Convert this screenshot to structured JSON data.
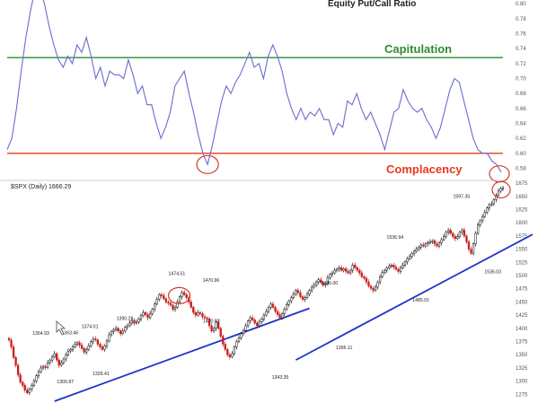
{
  "chart_data": [
    {
      "type": "line",
      "title": "Equity Put/Call Ratio",
      "y_ticks": [
        "0.80",
        "0.78",
        "0.76",
        "0.74",
        "0.72",
        "0.70",
        "0.68",
        "0.66",
        "0.64",
        "0.62",
        "0.60",
        "0.58"
      ],
      "ylim": [
        0.565,
        0.805
      ],
      "series": [
        {
          "values": [
            0.605,
            0.62,
            0.66,
            0.71,
            0.755,
            0.79,
            0.82,
            0.82,
            0.8,
            0.77,
            0.745,
            0.725,
            0.715,
            0.73,
            0.72,
            0.745,
            0.735,
            0.755,
            0.73,
            0.7,
            0.715,
            0.69,
            0.71,
            0.705,
            0.705,
            0.7,
            0.725,
            0.705,
            0.68,
            0.69,
            0.665,
            0.665,
            0.64,
            0.62,
            0.635,
            0.655,
            0.69,
            0.7,
            0.71,
            0.68,
            0.655,
            0.625,
            0.6,
            0.585,
            0.61,
            0.64,
            0.67,
            0.69,
            0.68,
            0.695,
            0.705,
            0.72,
            0.735,
            0.715,
            0.72,
            0.7,
            0.73,
            0.745,
            0.73,
            0.71,
            0.68,
            0.66,
            0.645,
            0.66,
            0.645,
            0.655,
            0.65,
            0.66,
            0.645,
            0.645,
            0.625,
            0.64,
            0.635,
            0.67,
            0.665,
            0.68,
            0.66,
            0.645,
            0.655,
            0.64,
            0.625,
            0.605,
            0.63,
            0.655,
            0.66,
            0.685,
            0.67,
            0.66,
            0.655,
            0.66,
            0.645,
            0.635,
            0.62,
            0.635,
            0.66,
            0.685,
            0.7,
            0.695,
            0.67,
            0.645,
            0.62,
            0.605,
            0.6,
            0.6,
            0.59,
            0.585,
            0.575
          ]
        }
      ],
      "reference_lines": [
        {
          "label": "Capitulation",
          "value": 0.728,
          "color": "#2e8b2e"
        },
        {
          "label": "Complacency",
          "value": 0.6,
          "color": "#e8391e"
        }
      ],
      "line_color": "#6b6bd0",
      "highlight_color": "#d63a2a"
    },
    {
      "type": "candlestick",
      "title": "$SPX (Daily) 1666.29",
      "y_ticks": [
        "1675",
        "1650",
        "1625",
        "1600",
        "1575",
        "1550",
        "1525",
        "1500",
        "1475",
        "1450",
        "1425",
        "1400",
        "1375",
        "1350",
        "1325",
        "1300",
        "1275"
      ],
      "ylim": [
        1262,
        1682
      ],
      "close": [
        1378,
        1365,
        1345,
        1330,
        1312,
        1298,
        1292,
        1283,
        1278,
        1285,
        1292,
        1300,
        1310,
        1318,
        1325,
        1328,
        1326,
        1335,
        1340,
        1346,
        1352,
        1340,
        1330,
        1335,
        1342,
        1350,
        1357,
        1360,
        1365,
        1370,
        1373,
        1368,
        1362,
        1355,
        1360,
        1367,
        1375,
        1380,
        1378,
        1370,
        1365,
        1360,
        1367,
        1376,
        1388,
        1394,
        1397,
        1400,
        1395,
        1390,
        1395,
        1402,
        1405,
        1410,
        1415,
        1410,
        1412,
        1418,
        1424,
        1430,
        1426,
        1420,
        1428,
        1436,
        1446,
        1455,
        1464,
        1462,
        1456,
        1450,
        1448,
        1444,
        1436,
        1440,
        1450,
        1460,
        1468,
        1464,
        1458,
        1450,
        1440,
        1430,
        1425,
        1430,
        1428,
        1422,
        1420,
        1418,
        1405,
        1395,
        1400,
        1412,
        1400,
        1385,
        1370,
        1360,
        1350,
        1346,
        1352,
        1365,
        1375,
        1382,
        1390,
        1396,
        1405,
        1414,
        1420,
        1416,
        1410,
        1405,
        1412,
        1418,
        1425,
        1432,
        1440,
        1446,
        1440,
        1432,
        1426,
        1420,
        1428,
        1436,
        1445,
        1452,
        1458,
        1465,
        1472,
        1468,
        1460,
        1455,
        1458,
        1465,
        1472,
        1478,
        1482,
        1488,
        1492,
        1487,
        1482,
        1484,
        1496,
        1502,
        1505,
        1510,
        1512,
        1515,
        1510,
        1513,
        1508,
        1505,
        1510,
        1520,
        1515,
        1510,
        1505,
        1498,
        1495,
        1488,
        1480,
        1476,
        1472,
        1478,
        1488,
        1498,
        1506,
        1510,
        1514,
        1518,
        1520,
        1516,
        1512,
        1508,
        1515,
        1520,
        1526,
        1532,
        1536,
        1542,
        1546,
        1550,
        1554,
        1558,
        1556,
        1560,
        1562,
        1564,
        1566,
        1560,
        1556,
        1562,
        1568,
        1574,
        1582,
        1586,
        1580,
        1574,
        1570,
        1574,
        1582,
        1586,
        1575,
        1564,
        1550,
        1542,
        1560,
        1580,
        1596,
        1604,
        1612,
        1620,
        1628,
        1634,
        1636,
        1644,
        1652,
        1660,
        1665,
        1666
      ],
      "annotations": [
        {
          "text": "1354.93",
          "i": 19,
          "price": 1350,
          "dy": -22,
          "dx": -12
        },
        {
          "text": "1363.46",
          "i": 27,
          "price": 1358,
          "dy": -18,
          "dx": 0
        },
        {
          "text": "1374.01",
          "i": 35,
          "price": 1367,
          "dy": -20,
          "dx": 2
        },
        {
          "text": "1390.29",
          "i": 48,
          "price": 1392,
          "dy": -14,
          "dx": 8
        },
        {
          "text": "1291.98",
          "i": 8,
          "price": 1278,
          "dy": 20,
          "dx": -8
        },
        {
          "text": "1266.74",
          "i": 14,
          "price": 1266,
          "dy": 12,
          "dx": 4
        },
        {
          "text": "1309.87",
          "i": 25,
          "price": 1330,
          "dy": 20,
          "dx": 0
        },
        {
          "text": "1329.41",
          "i": 43,
          "price": 1345,
          "dy": 20,
          "dx": -6
        },
        {
          "text": "1474.51",
          "i": 74,
          "price": 1470,
          "dy": -18,
          "dx": 0
        },
        {
          "text": "1470.96",
          "i": 89,
          "price": 1464,
          "dy": -14,
          "dx": 0
        },
        {
          "text": "1430.52",
          "i": 86,
          "price": 1435,
          "dy": 14,
          "dx": 8
        },
        {
          "text": "1343.35",
          "i": 121,
          "price": 1345,
          "dy": 24,
          "dx": -4
        },
        {
          "text": "1446.00",
          "i": 141,
          "price": 1446,
          "dy": -22,
          "dx": 0
        },
        {
          "text": "1396.11",
          "i": 146,
          "price": 1395,
          "dy": 20,
          "dx": 4
        },
        {
          "text": "1536.94",
          "i": 173,
          "price": 1536,
          "dy": -20,
          "dx": -8
        },
        {
          "text": "1485.01",
          "i": 182,
          "price": 1478,
          "dy": 16,
          "dx": -2
        },
        {
          "text": "1597.35",
          "i": 203,
          "price": 1596,
          "dy": -30,
          "dx": -10
        },
        {
          "text": "1536.03",
          "i": 212,
          "price": 1542,
          "dy": 22,
          "dx": 2
        }
      ],
      "trendlines": [
        {
          "from": [
            20,
            1262
          ],
          "to": [
            132,
            1438
          ]
        },
        {
          "from": [
            126,
            1340
          ],
          "to": [
            230,
            1578
          ]
        }
      ],
      "up_color": "#111111",
      "down_color": "#c81e1e",
      "trendline_color": "#1f35c9"
    }
  ]
}
